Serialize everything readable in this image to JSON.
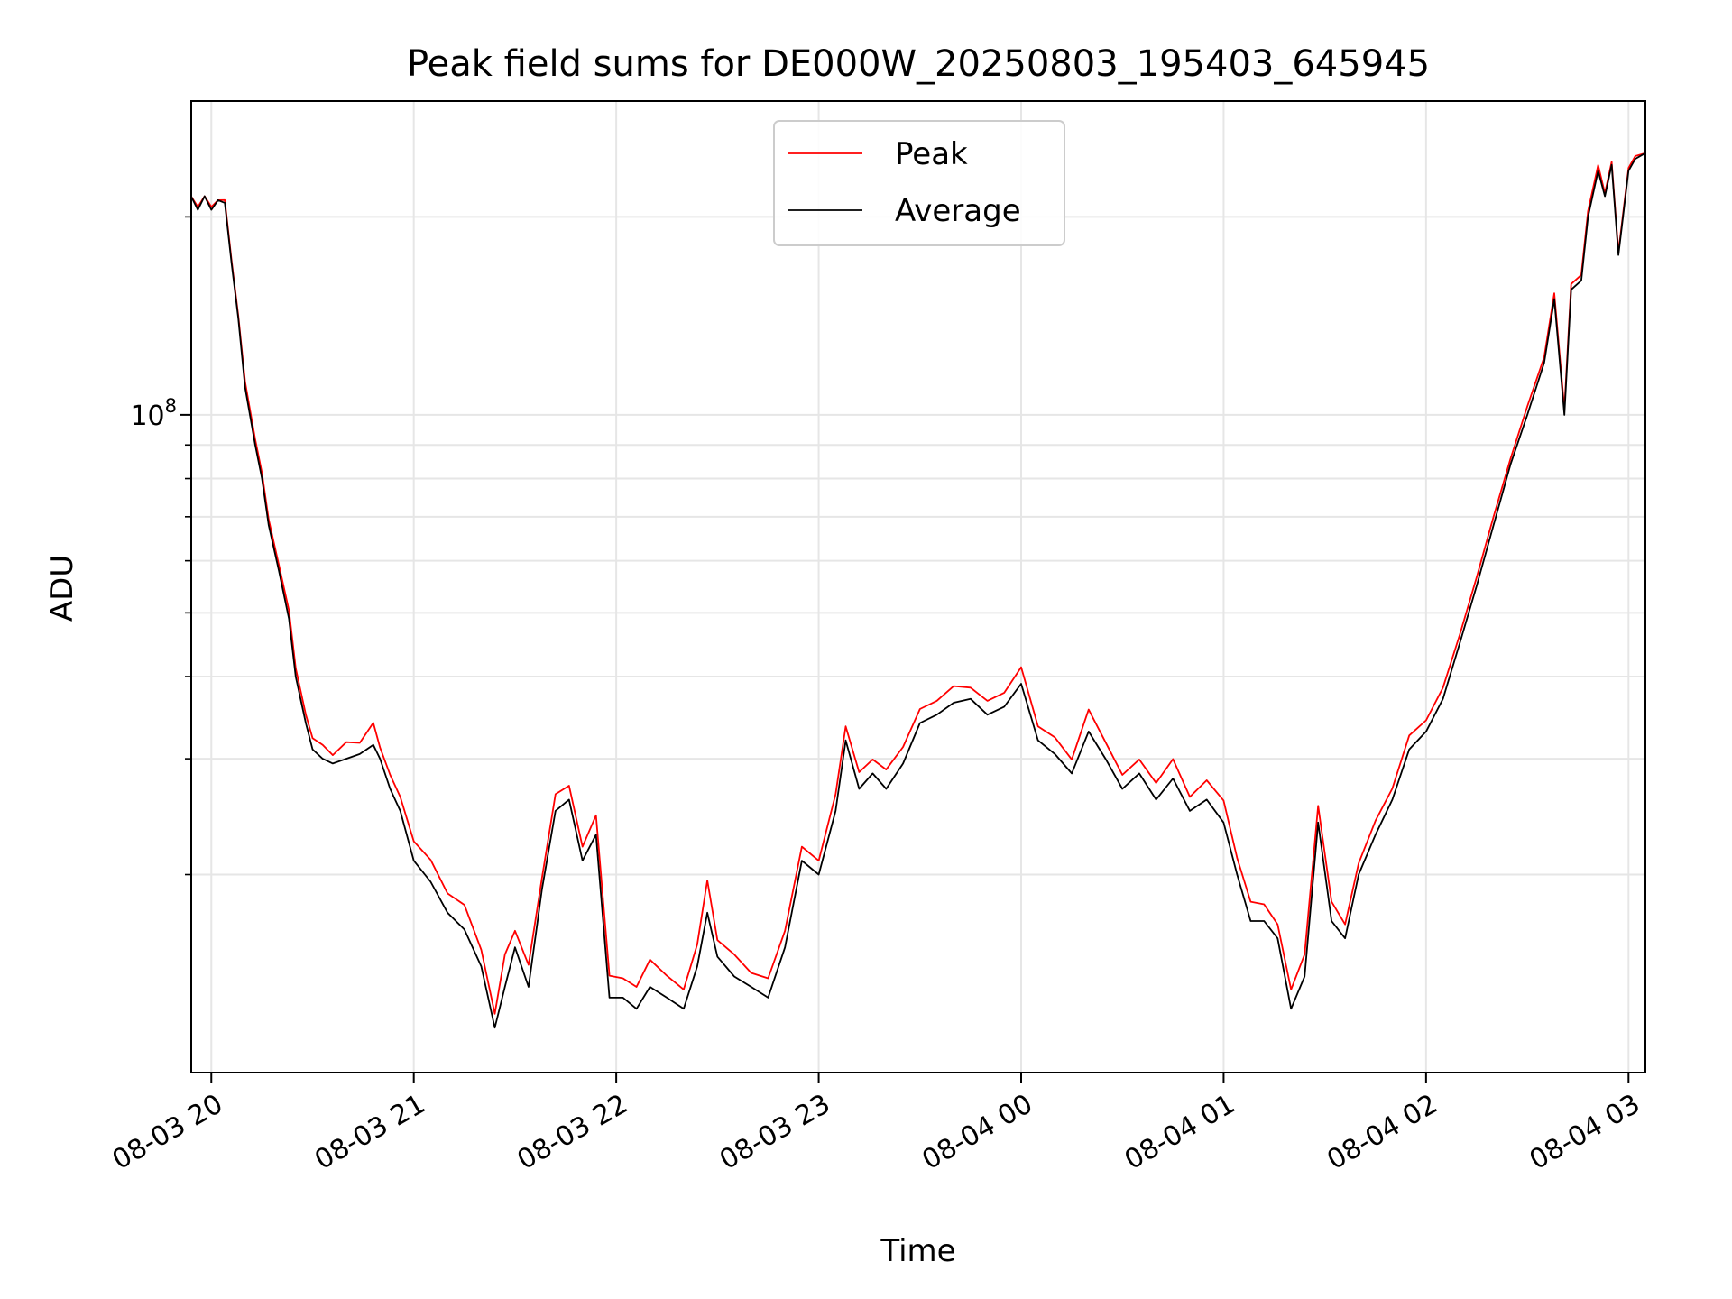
{
  "chart_data": {
    "type": "line",
    "title": "Peak field sums for DE000W_20250803_195403_645945",
    "xlabel": "Time",
    "ylabel": "ADU",
    "y_scale": "log",
    "ylim": [
      10000000,
      300000000
    ],
    "y_major_tick_labels": [
      {
        "value": 100000000,
        "base": "10",
        "exp": "8"
      }
    ],
    "y_minor_ticks": [
      20000000,
      30000000,
      40000000,
      50000000,
      60000000,
      70000000,
      80000000,
      90000000,
      200000000
    ],
    "xlim": [
      "2025-08-03 19:54:03",
      "2025-08-04 03:05:00"
    ],
    "x_tick_labels": [
      {
        "t": "2025-08-03 20:00",
        "label": "08-03 20"
      },
      {
        "t": "2025-08-03 21:00",
        "label": "08-03 21"
      },
      {
        "t": "2025-08-03 22:00",
        "label": "08-03 22"
      },
      {
        "t": "2025-08-03 23:00",
        "label": "08-03 23"
      },
      {
        "t": "2025-08-04 00:00",
        "label": "08-04 00"
      },
      {
        "t": "2025-08-04 01:00",
        "label": "08-04 01"
      },
      {
        "t": "2025-08-04 02:00",
        "label": "08-04 02"
      },
      {
        "t": "2025-08-04 03:00",
        "label": "08-04 03"
      }
    ],
    "grid": true,
    "legend_position": "top-center",
    "series": [
      {
        "name": "Peak",
        "color": "#ff0000"
      },
      {
        "name": "Average",
        "color": "#000000"
      }
    ],
    "x": [
      "2025-08-03 19:54",
      "2025-08-03 19:56",
      "2025-08-03 19:58",
      "2025-08-03 20:00",
      "2025-08-03 20:02",
      "2025-08-03 20:04",
      "2025-08-03 20:06",
      "2025-08-03 20:08",
      "2025-08-03 20:10",
      "2025-08-03 20:13",
      "2025-08-03 20:15",
      "2025-08-03 20:17",
      "2025-08-03 20:20",
      "2025-08-03 20:23",
      "2025-08-03 20:25",
      "2025-08-03 20:28",
      "2025-08-03 20:30",
      "2025-08-03 20:33",
      "2025-08-03 20:36",
      "2025-08-03 20:40",
      "2025-08-03 20:44",
      "2025-08-03 20:48",
      "2025-08-03 20:50",
      "2025-08-03 20:53",
      "2025-08-03 20:56",
      "2025-08-03 21:00",
      "2025-08-03 21:05",
      "2025-08-03 21:10",
      "2025-08-03 21:15",
      "2025-08-03 21:20",
      "2025-08-03 21:24",
      "2025-08-03 21:27",
      "2025-08-03 21:30",
      "2025-08-03 21:34",
      "2025-08-03 21:38",
      "2025-08-03 21:42",
      "2025-08-03 21:46",
      "2025-08-03 21:50",
      "2025-08-03 21:54",
      "2025-08-03 21:58",
      "2025-08-03 22:02",
      "2025-08-03 22:06",
      "2025-08-03 22:10",
      "2025-08-03 22:15",
      "2025-08-03 22:20",
      "2025-08-03 22:24",
      "2025-08-03 22:27",
      "2025-08-03 22:30",
      "2025-08-03 22:35",
      "2025-08-03 22:40",
      "2025-08-03 22:45",
      "2025-08-03 22:50",
      "2025-08-03 22:55",
      "2025-08-03 23:00",
      "2025-08-03 23:05",
      "2025-08-03 23:08",
      "2025-08-03 23:12",
      "2025-08-03 23:16",
      "2025-08-03 23:20",
      "2025-08-03 23:25",
      "2025-08-03 23:30",
      "2025-08-03 23:35",
      "2025-08-03 23:40",
      "2025-08-03 23:45",
      "2025-08-03 23:50",
      "2025-08-03 23:55",
      "2025-08-04 00:00",
      "2025-08-04 00:05",
      "2025-08-04 00:10",
      "2025-08-04 00:15",
      "2025-08-04 00:20",
      "2025-08-04 00:25",
      "2025-08-04 00:30",
      "2025-08-04 00:35",
      "2025-08-04 00:40",
      "2025-08-04 00:45",
      "2025-08-04 00:50",
      "2025-08-04 00:55",
      "2025-08-04 01:00",
      "2025-08-04 01:04",
      "2025-08-04 01:08",
      "2025-08-04 01:12",
      "2025-08-04 01:16",
      "2025-08-04 01:20",
      "2025-08-04 01:24",
      "2025-08-04 01:28",
      "2025-08-04 01:32",
      "2025-08-04 01:36",
      "2025-08-04 01:40",
      "2025-08-04 01:45",
      "2025-08-04 01:50",
      "2025-08-04 01:55",
      "2025-08-04 02:00",
      "2025-08-04 02:05",
      "2025-08-04 02:10",
      "2025-08-04 02:15",
      "2025-08-04 02:20",
      "2025-08-04 02:25",
      "2025-08-04 02:30",
      "2025-08-04 02:35",
      "2025-08-04 02:38",
      "2025-08-04 02:41",
      "2025-08-04 02:43",
      "2025-08-04 02:46",
      "2025-08-04 02:48",
      "2025-08-04 02:51",
      "2025-08-04 02:53",
      "2025-08-04 02:55",
      "2025-08-04 02:57",
      "2025-08-04 03:00",
      "2025-08-04 03:02",
      "2025-08-04 03:05"
    ],
    "avg_values": [
      215000000,
      205000000,
      215000000,
      205000000,
      212000000,
      210000000,
      170000000,
      140000000,
      110000000,
      90000000,
      80000000,
      68000000,
      58000000,
      49000000,
      40000000,
      34000000,
      31000000,
      30000000,
      29500000,
      30000000,
      30500000,
      31500000,
      30000000,
      27000000,
      25000000,
      21000000,
      19500000,
      17500000,
      16500000,
      14500000,
      11700000,
      13500000,
      15500000,
      13500000,
      19000000,
      25000000,
      26000000,
      21000000,
      23000000,
      13000000,
      13000000,
      12500000,
      13500000,
      13000000,
      12500000,
      14500000,
      17500000,
      15000000,
      14000000,
      13500000,
      13000000,
      15500000,
      21000000,
      20000000,
      25000000,
      32000000,
      27000000,
      28500000,
      27000000,
      29500000,
      34000000,
      35000000,
      36500000,
      37000000,
      35000000,
      36000000,
      39000000,
      32000000,
      30500000,
      28500000,
      33000000,
      30000000,
      27000000,
      28500000,
      26000000,
      28000000,
      25000000,
      26000000,
      24000000,
      20000000,
      17000000,
      17000000,
      16000000,
      12500000,
      14000000,
      24000000,
      17000000,
      16000000,
      20000000,
      23000000,
      26000000,
      31000000,
      33000000,
      37000000,
      45000000,
      55000000,
      68000000,
      84000000,
      100000000,
      120000000,
      150000000,
      100000000,
      155000000,
      160000000,
      200000000,
      235000000,
      215000000,
      240000000,
      175000000,
      235000000,
      245000000,
      250000000
    ],
    "peak_offsets": [
      1.0,
      1.01,
      1.0,
      1.01,
      1.0,
      1.01,
      1.01,
      1.01,
      1.02,
      1.02,
      1.02,
      1.02,
      1.02,
      1.03,
      1.03,
      1.03,
      1.04,
      1.05,
      1.03,
      1.06,
      1.04,
      1.08,
      1.04,
      1.05,
      1.05,
      1.07,
      1.08,
      1.07,
      1.09,
      1.06,
      1.05,
      1.12,
      1.06,
      1.08,
      1.04,
      1.06,
      1.05,
      1.05,
      1.07,
      1.08,
      1.07,
      1.08,
      1.1,
      1.08,
      1.07,
      1.08,
      1.12,
      1.06,
      1.08,
      1.05,
      1.07,
      1.06,
      1.05,
      1.05,
      1.06,
      1.05,
      1.06,
      1.05,
      1.07,
      1.06,
      1.05,
      1.05,
      1.06,
      1.04,
      1.05,
      1.05,
      1.06,
      1.05,
      1.06,
      1.05,
      1.08,
      1.06,
      1.05,
      1.05,
      1.06,
      1.07,
      1.05,
      1.07,
      1.08,
      1.06,
      1.07,
      1.06,
      1.05,
      1.07,
      1.08,
      1.06,
      1.07,
      1.05,
      1.04,
      1.05,
      1.04,
      1.05,
      1.04,
      1.04,
      1.03,
      1.03,
      1.03,
      1.02,
      1.03,
      1.02,
      1.02,
      1.02,
      1.02,
      1.02,
      1.02,
      1.02,
      1.01,
      1.01,
      1.01,
      1.01,
      1.01,
      1.0
    ]
  }
}
